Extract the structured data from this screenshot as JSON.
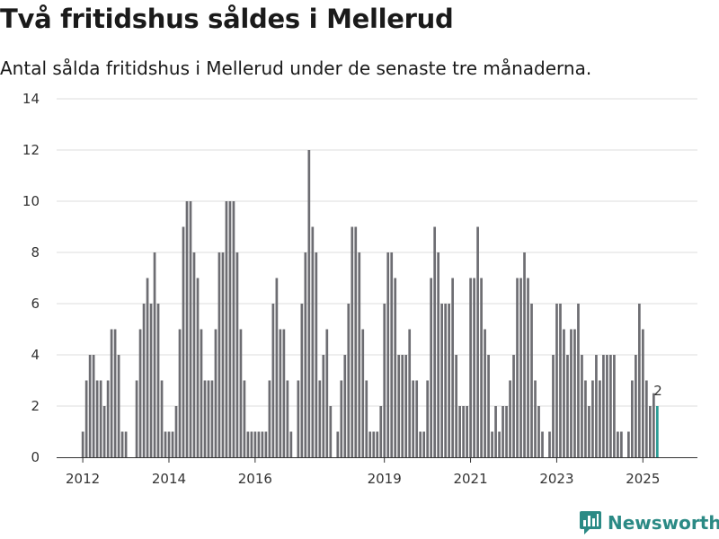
{
  "header": {
    "title": "Två fritidshus såldes i Mellerud",
    "subtitle": "Antal sålda fritidshus i Mellerud under de senaste tre månaderna."
  },
  "brand": {
    "name": "Newsworthy"
  },
  "colors": {
    "bar": "#6d6d72",
    "highlight": "#2a9c95",
    "grid": "#dcdcdc"
  },
  "chart_data": {
    "type": "bar",
    "title": "Två fritidshus såldes i Mellerud",
    "subtitle": "Antal sålda fritidshus i Mellerud under de senaste tre månaderna.",
    "xlabel": "",
    "ylabel": "",
    "ylim": [
      0,
      14
    ],
    "y_ticks": [
      0,
      2,
      4,
      6,
      8,
      10,
      12,
      14
    ],
    "x_tick_labels": [
      "2012",
      "2014",
      "2016",
      "2019",
      "2021",
      "2023",
      "2025"
    ],
    "start": "2012-01",
    "note": "Monthly bars (rolling three-month sums); months with no bar are gaps (null).",
    "last_value_label": "2",
    "values": [
      1,
      3,
      4,
      4,
      3,
      3,
      2,
      3,
      5,
      5,
      4,
      1,
      1,
      null,
      null,
      3,
      5,
      6,
      7,
      6,
      8,
      6,
      3,
      1,
      1,
      1,
      2,
      5,
      9,
      10,
      10,
      8,
      7,
      5,
      3,
      3,
      3,
      5,
      8,
      8,
      10,
      10,
      10,
      8,
      5,
      3,
      1,
      1,
      1,
      1,
      1,
      1,
      3,
      6,
      7,
      5,
      5,
      3,
      1,
      null,
      3,
      6,
      8,
      12,
      9,
      8,
      3,
      4,
      5,
      2,
      null,
      1,
      3,
      4,
      6,
      9,
      9,
      8,
      5,
      3,
      1,
      1,
      1,
      2,
      6,
      8,
      8,
      7,
      4,
      4,
      4,
      5,
      3,
      3,
      1,
      1,
      3,
      7,
      9,
      8,
      6,
      6,
      6,
      7,
      4,
      2,
      2,
      2,
      7,
      7,
      9,
      7,
      5,
      4,
      1,
      2,
      1,
      2,
      2,
      3,
      4,
      7,
      7,
      8,
      7,
      6,
      3,
      2,
      1,
      null,
      1,
      4,
      6,
      6,
      5,
      4,
      5,
      5,
      6,
      4,
      3,
      2,
      3,
      4,
      3,
      4,
      4,
      4,
      4,
      1,
      1,
      null,
      1,
      3,
      4,
      6,
      5,
      3,
      2,
      2.5,
      2
    ]
  }
}
